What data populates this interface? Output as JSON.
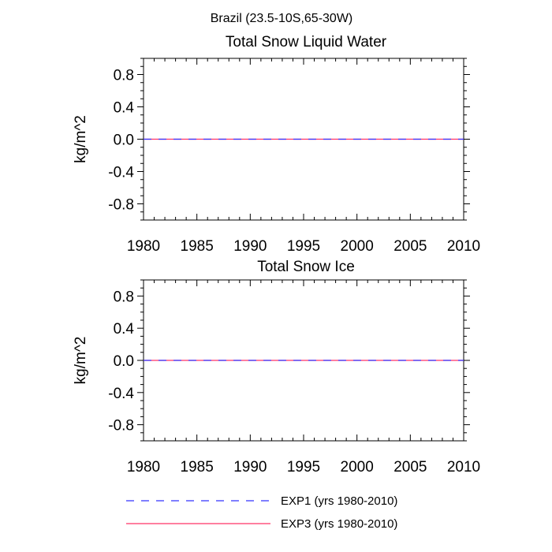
{
  "main_title": "Brazil (23.5-10S,65-30W)",
  "legend": [
    {
      "label": "EXP1 (yrs 1980-2010)",
      "color": "#3333ff",
      "dash": "dashed"
    },
    {
      "label": "EXP3 (yrs 1980-2010)",
      "color": "#ff3366",
      "dash": "solid"
    }
  ],
  "chart_data": [
    {
      "type": "line",
      "title": "Total Snow Liquid Water",
      "ylabel": "kg/m^2",
      "xlim": [
        1980,
        2010
      ],
      "ylim": [
        -1.0,
        1.0
      ],
      "xticks": [
        1980,
        1985,
        1990,
        1995,
        2000,
        2005,
        2010
      ],
      "yticks": [
        -0.8,
        -0.4,
        0.0,
        0.4,
        0.8
      ],
      "ytick_labels": [
        "-0.8",
        "-0.4",
        "0.0",
        "0.4",
        "0.8"
      ],
      "series": [
        {
          "name": "EXP1 (yrs 1980-2010)",
          "x": [
            1980,
            2010
          ],
          "values": [
            0,
            0
          ],
          "color": "#3333ff",
          "dash": "dashed"
        },
        {
          "name": "EXP3 (yrs 1980-2010)",
          "x": [
            1980,
            2010
          ],
          "values": [
            0,
            0
          ],
          "color": "#ff3366",
          "dash": "solid"
        }
      ]
    },
    {
      "type": "line",
      "title": "Total Snow Ice",
      "ylabel": "kg/m^2",
      "xlim": [
        1980,
        2010
      ],
      "ylim": [
        -1.0,
        1.0
      ],
      "xticks": [
        1980,
        1985,
        1990,
        1995,
        2000,
        2005,
        2010
      ],
      "yticks": [
        -0.8,
        -0.4,
        0.0,
        0.4,
        0.8
      ],
      "ytick_labels": [
        "-0.8",
        "-0.4",
        "0.0",
        "0.4",
        "0.8"
      ],
      "series": [
        {
          "name": "EXP1 (yrs 1980-2010)",
          "x": [
            1980,
            2010
          ],
          "values": [
            0,
            0
          ],
          "color": "#3333ff",
          "dash": "dashed"
        },
        {
          "name": "EXP3 (yrs 1980-2010)",
          "x": [
            1980,
            2010
          ],
          "values": [
            0,
            0
          ],
          "color": "#ff3366",
          "dash": "solid"
        }
      ]
    }
  ]
}
